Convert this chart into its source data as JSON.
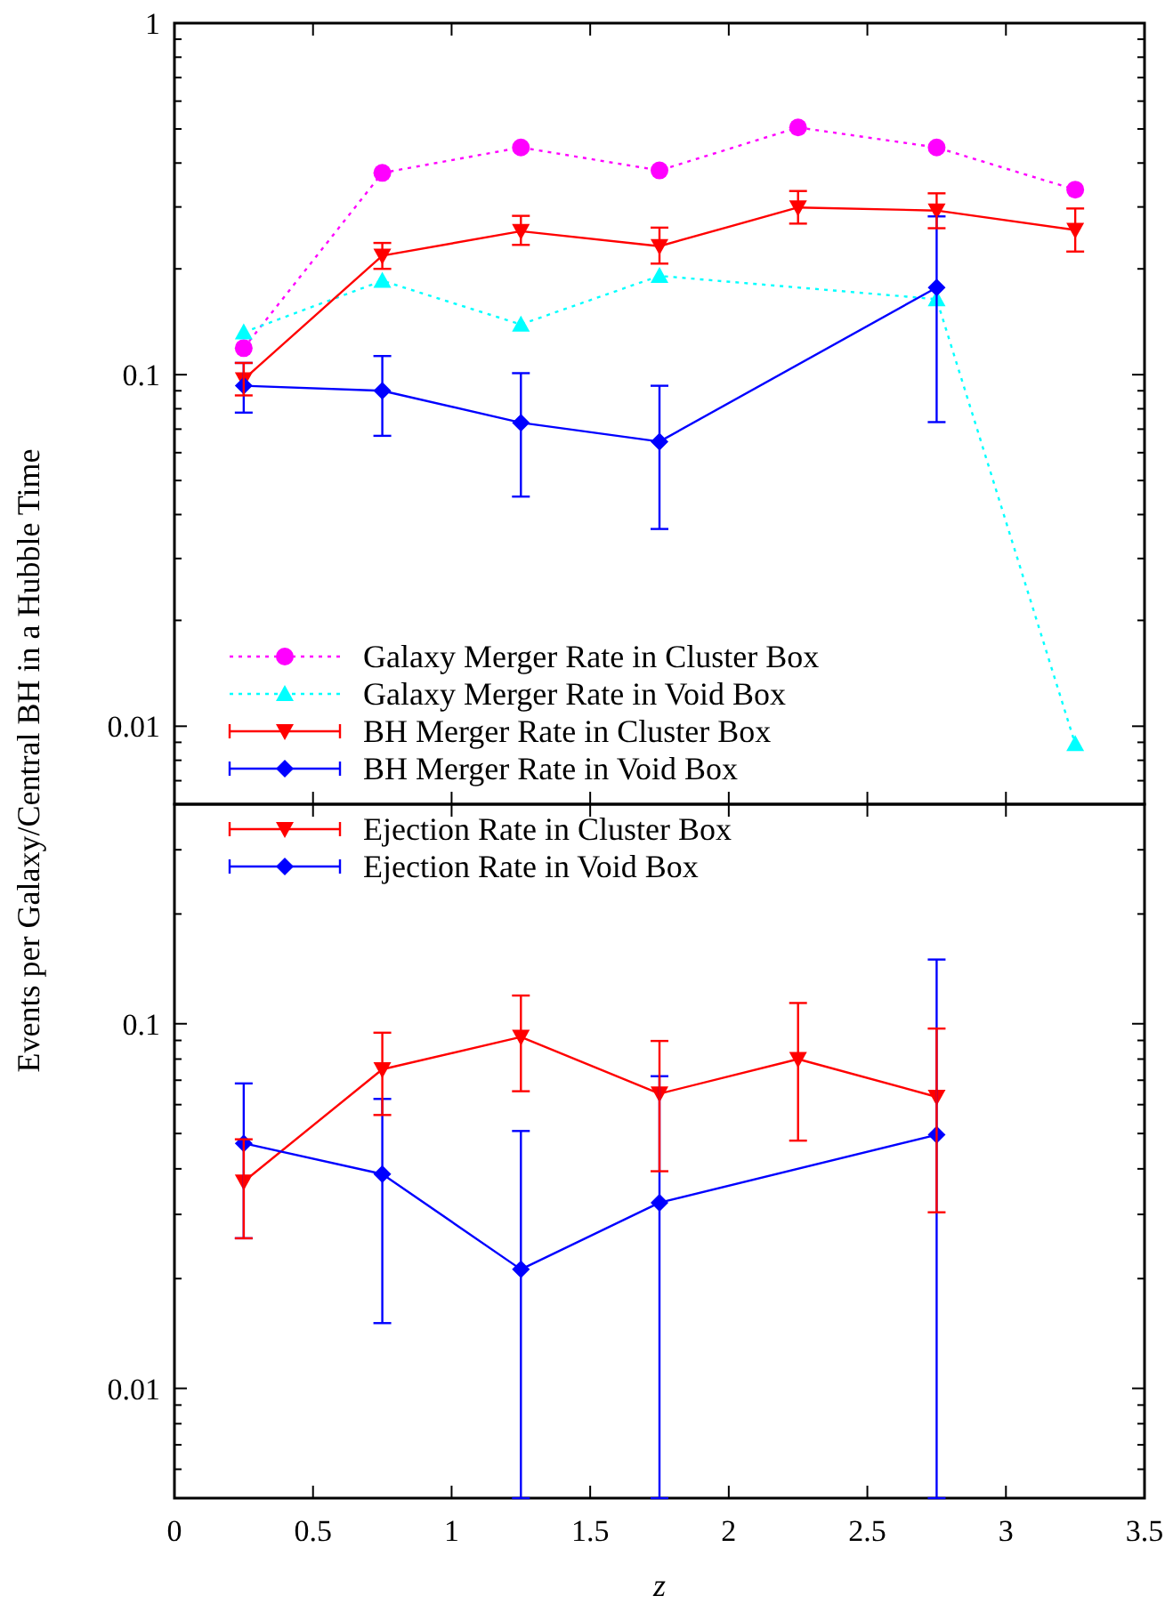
{
  "chart_data": [
    {
      "type": "line",
      "ylabel": "Events per Galaxy/Central BH in a Hubble Time",
      "log": "y",
      "legend": "bottom left",
      "tick_labels": "y",
      "grid": false,
      "xlim": [
        0,
        3.5
      ],
      "xticks": [
        0,
        0.5,
        1,
        1.5,
        2,
        2.5,
        3,
        3.5
      ],
      "ylim": [
        0.006,
        1
      ],
      "yticks": [
        {
          "value": 0.006,
          "label": null
        },
        {
          "value": 0.007,
          "label": null
        },
        {
          "value": 0.008,
          "label": null
        },
        {
          "value": 0.009,
          "label": null
        },
        0.01,
        {
          "value": 0.02,
          "label": null
        },
        {
          "value": 0.03,
          "label": null
        },
        {
          "value": 0.04,
          "label": null
        },
        {
          "value": 0.05,
          "label": null
        },
        {
          "value": 0.06,
          "label": null
        },
        {
          "value": 0.07,
          "label": null
        },
        {
          "value": 0.08,
          "label": null
        },
        {
          "value": 0.09,
          "label": null
        },
        0.1,
        {
          "value": 0.2,
          "label": null
        },
        {
          "value": 0.3,
          "label": null
        },
        {
          "value": 0.4,
          "label": null
        },
        {
          "value": 0.5,
          "label": null
        },
        {
          "value": 0.6,
          "label": null
        },
        {
          "value": 0.7,
          "label": null
        },
        {
          "value": 0.8,
          "label": null
        },
        {
          "value": 0.9,
          "label": null
        },
        1
      ],
      "series": [
        {
          "name": "Galaxy Merger Rate in Cluster Box",
          "color": "#ff00ff",
          "line_style": "dotted",
          "marker": "circle",
          "x": [
            0.25,
            0.75,
            1.25,
            1.75,
            2.25,
            2.75,
            3.25
          ],
          "values": [
            0.119,
            0.375,
            0.443,
            0.381,
            0.505,
            0.443,
            0.336
          ]
        },
        {
          "name": "Galaxy Merger Rate in Void Box",
          "color": "#00ffff",
          "line_style": "dotted",
          "marker": "triangle",
          "x": [
            0.25,
            0.75,
            1.25,
            1.75,
            2.75,
            3.25
          ],
          "values": [
            0.132,
            0.185,
            0.139,
            0.191,
            0.164,
            0.0089
          ]
        },
        {
          "name": "BH Merger Rate in Cluster Box",
          "color": "#ff0000",
          "line_style": "solid",
          "marker": "triangle-down",
          "x": [
            0.25,
            0.75,
            1.25,
            1.75,
            2.25,
            2.75,
            3.25
          ],
          "values": [
            0.097,
            0.218,
            0.256,
            0.232,
            0.299,
            0.293,
            0.258
          ],
          "errors": [
            [
              0.0873,
              0.108
            ],
            [
              0.2,
              0.237
            ],
            [
              0.234,
              0.283
            ],
            [
              0.207,
              0.262
            ],
            [
              0.269,
              0.333
            ],
            [
              0.261,
              0.328
            ],
            [
              0.224,
              0.297
            ]
          ]
        },
        {
          "name": "BH Merger Rate in Void Box",
          "color": "#0000ff",
          "line_style": "solid",
          "marker": "diamond",
          "x": [
            0.25,
            0.75,
            1.25,
            1.75,
            2.75
          ],
          "values": [
            0.093,
            0.09,
            0.073,
            0.0645,
            0.177
          ],
          "errors": [
            [
              0.078,
              0.108
            ],
            [
              0.067,
              0.113
            ],
            [
              0.045,
              0.101
            ],
            [
              0.0364,
              0.093
            ],
            [
              0.0733,
              0.282
            ]
          ]
        }
      ]
    },
    {
      "type": "line",
      "xlabel": "z",
      "log": "y",
      "legend": "top left",
      "grid": false,
      "xlim": [
        0,
        3.5
      ],
      "xticks": [
        0,
        0.5,
        1,
        1.5,
        2,
        2.5,
        3,
        3.5
      ],
      "ylim": [
        0.005,
        0.4
      ],
      "yticks": [
        {
          "value": 0.005,
          "label": null
        },
        {
          "value": 0.006,
          "label": null
        },
        {
          "value": 0.007,
          "label": null
        },
        {
          "value": 0.008,
          "label": null
        },
        {
          "value": 0.009,
          "label": null
        },
        0.01,
        {
          "value": 0.02,
          "label": null
        },
        {
          "value": 0.03,
          "label": null
        },
        {
          "value": 0.04,
          "label": null
        },
        {
          "value": 0.05,
          "label": null
        },
        {
          "value": 0.06,
          "label": null
        },
        {
          "value": 0.07,
          "label": null
        },
        {
          "value": 0.08,
          "label": null
        },
        {
          "value": 0.09,
          "label": null
        },
        0.1,
        {
          "value": 0.2,
          "label": null
        },
        {
          "value": 0.3,
          "label": null
        },
        {
          "value": 0.4,
          "label": null
        }
      ],
      "series": [
        {
          "name": "Ejection Rate in Cluster Box",
          "color": "#ff0000",
          "line_style": "solid",
          "marker": "triangle-down",
          "x": [
            0.25,
            0.75,
            1.25,
            1.75,
            2.25,
            2.75
          ],
          "values": [
            0.0369,
            0.075,
            0.092,
            0.0643,
            0.08,
            0.063
          ],
          "errors": [
            [
              0.0258,
              0.0482
            ],
            [
              0.0562,
              0.0945
            ],
            [
              0.0653,
              0.1195
            ],
            [
              0.0394,
              0.0897
            ],
            [
              0.0478,
              0.114
            ],
            [
              0.0304,
              0.097
            ]
          ]
        },
        {
          "name": "Ejection Rate in Void Box",
          "color": "#0000ff",
          "line_style": "solid",
          "marker": "diamond",
          "x": [
            0.25,
            0.75,
            1.25,
            1.75,
            2.75
          ],
          "values": [
            0.047,
            0.0387,
            0.0212,
            0.0323,
            0.0496
          ],
          "errors": [
            [
              0.0258,
              0.0686
            ],
            [
              0.0151,
              0.0622
            ],
            [
              0.005,
              0.0508
            ],
            [
              0.005,
              0.0718
            ],
            [
              0.005,
              0.15
            ]
          ]
        }
      ]
    }
  ]
}
